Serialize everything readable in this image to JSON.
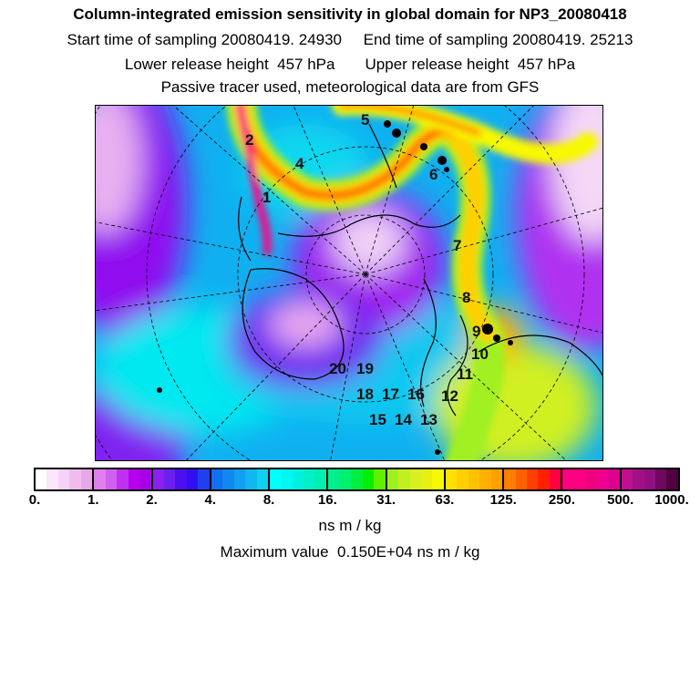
{
  "header": {
    "title": "Column-integrated emission sensitivity in global domain for NP3_20080418",
    "sampling": "Start time of sampling 20080419. 24930     End time of sampling 20080419. 25213",
    "release": "Lower release height  457 hPa       Upper release height  457 hPa",
    "note": "Passive tracer used, meteorological data are from GFS"
  },
  "map": {
    "projection": "polar stereographic, northern hemisphere",
    "trajectory_labels": [
      "1",
      "2",
      "4",
      "5",
      "6",
      "7",
      "8",
      "9",
      "10",
      "11",
      "12",
      "13",
      "14",
      "15",
      "16",
      "17",
      "18",
      "19",
      "20"
    ]
  },
  "colorbar": {
    "tick_labels": [
      "0.",
      "1.",
      "2.",
      "4.",
      "8.",
      "16.",
      "31.",
      "63.",
      "125.",
      "250.",
      "500.",
      "1000."
    ],
    "units": "ns m / kg",
    "segments": [
      [
        "#ffffff",
        "#fbe6fb",
        "#f6d2f6",
        "#f0bcf0",
        "#eaa6ea"
      ],
      [
        "#e080f0",
        "#d060f0",
        "#c030f0",
        "#b800f0",
        "#a800e8"
      ],
      [
        "#8a20f0",
        "#6a20f0",
        "#4a10f0",
        "#3010f0",
        "#2040f0"
      ],
      [
        "#1070f0",
        "#1088f0",
        "#10a0f0",
        "#10b8f0",
        "#10d0f0"
      ],
      [
        "#00ffff",
        "#00f8f0",
        "#00f0e0",
        "#00f0c8",
        "#00f0b0"
      ],
      [
        "#00f090",
        "#00f070",
        "#00f040",
        "#00f000",
        "#60f000"
      ],
      [
        "#a0f020",
        "#c0f020",
        "#d8f020",
        "#e8f010",
        "#f8f800"
      ],
      [
        "#ffe000",
        "#ffd000",
        "#ffc000",
        "#ffb000",
        "#ffa000"
      ],
      [
        "#ff8000",
        "#ff6000",
        "#ff4000",
        "#ff2000",
        "#ff0040"
      ],
      [
        "#ff0080",
        "#ff0080",
        "#f00080",
        "#f00090",
        "#e00090"
      ],
      [
        "#c01090",
        "#a01088",
        "#901080",
        "#700860",
        "#500040"
      ]
    ]
  },
  "maximum": "Maximum value  0.150E+04 ns m / kg"
}
